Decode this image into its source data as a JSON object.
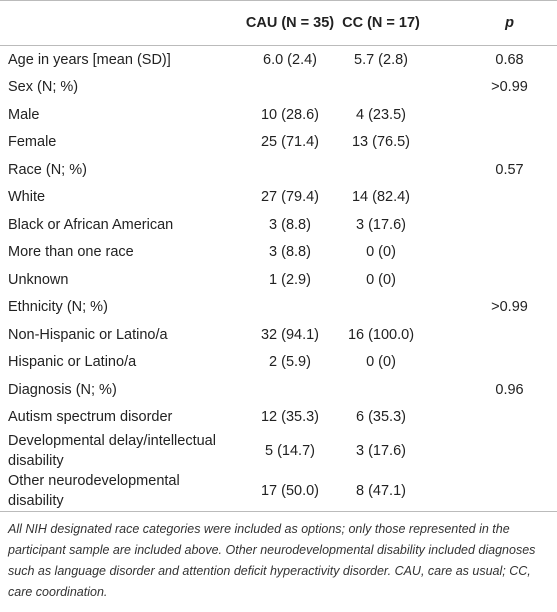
{
  "table": {
    "header": [
      "CAU (N = 35)",
      "CC (N = 17)",
      "p"
    ],
    "rows": [
      [
        "Age in years [mean (SD)]",
        "6.0 (2.4)",
        "5.7 (2.8)",
        "0.68"
      ],
      [
        "Sex (N; %)",
        null,
        null,
        ">0.99"
      ],
      [
        "Male",
        "10 (28.6)",
        "4 (23.5)",
        null
      ],
      [
        "Female",
        "25 (71.4)",
        "13 (76.5)",
        null
      ],
      [
        "Race (N; %)",
        null,
        null,
        "0.57"
      ],
      [
        "White",
        "27 (79.4)",
        "14 (82.4)",
        null
      ],
      [
        "Black or African American",
        "3 (8.8)",
        "3 (17.6)",
        null
      ],
      [
        "More than one race",
        "3 (8.8)",
        "0 (0)",
        null
      ],
      [
        "Unknown",
        "1 (2.9)",
        "0 (0)",
        null
      ],
      [
        "Ethnicity (N; %)",
        null,
        null,
        ">0.99"
      ],
      [
        "Non-Hispanic or Latino/a",
        "32 (94.1)",
        "16 (100.0)",
        null
      ],
      [
        "Hispanic or Latino/a",
        "2 (5.9)",
        "0 (0)",
        null
      ],
      [
        "Diagnosis (N; %)",
        null,
        null,
        "0.96"
      ],
      [
        "Autism spectrum disorder",
        "12 (35.3)",
        "6 (35.3)",
        null
      ],
      [
        "Developmental delay/intellectual disability",
        "5 (14.7)",
        "3 (17.6)",
        null
      ],
      [
        "Other neurodevelopmental disability",
        "17 (50.0)",
        "8 (47.1)",
        null
      ]
    ],
    "footnote": "All NIH designated race categories were included as options; only those represented in the participant sample are included above. Other neurodevelopmental disability included diagnoses such as language disorder and attention deficit hyperactivity disorder. CAU, care as usual; CC, care coordination."
  }
}
